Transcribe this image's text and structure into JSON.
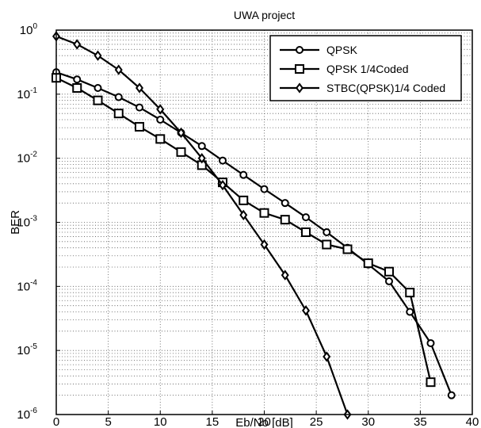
{
  "chart_data": {
    "type": "line",
    "title": "UWA project",
    "xlabel": "Eb/No [dB]",
    "ylabel": "BER",
    "xlim": [
      0,
      40
    ],
    "ylim": [
      1e-06,
      1
    ],
    "yscale": "log",
    "xticks": [
      "0",
      "5",
      "10",
      "15",
      "20",
      "25",
      "30",
      "35",
      "40"
    ],
    "yticks": [
      {
        "base": "10",
        "exp": "0"
      },
      {
        "base": "10",
        "exp": "-1"
      },
      {
        "base": "10",
        "exp": "-2"
      },
      {
        "base": "10",
        "exp": "-3"
      },
      {
        "base": "10",
        "exp": "-4"
      },
      {
        "base": "10",
        "exp": "-5"
      },
      {
        "base": "10",
        "exp": "-6"
      }
    ],
    "grid": true,
    "legend_position": "top-right",
    "series": [
      {
        "name": "QPSK",
        "marker": "circle",
        "x": [
          0,
          2,
          4,
          6,
          8,
          10,
          12,
          14,
          16,
          18,
          20,
          22,
          24,
          26,
          28,
          30,
          32,
          34,
          36,
          38
        ],
        "y": [
          0.22,
          0.17,
          0.125,
          0.09,
          0.062,
          0.04,
          0.025,
          0.0155,
          0.0092,
          0.0055,
          0.0033,
          0.002,
          0.0012,
          0.0007,
          0.0004,
          0.00022,
          0.00012,
          4e-05,
          1.3e-05,
          2e-06
        ]
      },
      {
        "name": "QPSK 1/4Coded",
        "marker": "square",
        "x": [
          0,
          2,
          4,
          6,
          8,
          10,
          12,
          14,
          16,
          18,
          20,
          22,
          24,
          26,
          28,
          30,
          32,
          34,
          36
        ],
        "y": [
          0.18,
          0.125,
          0.08,
          0.05,
          0.031,
          0.02,
          0.0125,
          0.0078,
          0.0042,
          0.0022,
          0.0014,
          0.0011,
          0.0007,
          0.00045,
          0.00038,
          0.00023,
          0.00017,
          8e-05,
          3.2e-06
        ]
      },
      {
        "name": "STBC(QPSK)1/4 Coded",
        "marker": "diamond",
        "x": [
          0,
          2,
          4,
          6,
          8,
          10,
          12,
          14,
          16,
          18,
          20,
          22,
          24,
          26,
          28
        ],
        "y": [
          0.8,
          0.6,
          0.4,
          0.24,
          0.125,
          0.058,
          0.025,
          0.01,
          0.0038,
          0.0013,
          0.00045,
          0.00015,
          4.2e-05,
          8e-06,
          1e-06
        ]
      }
    ]
  }
}
